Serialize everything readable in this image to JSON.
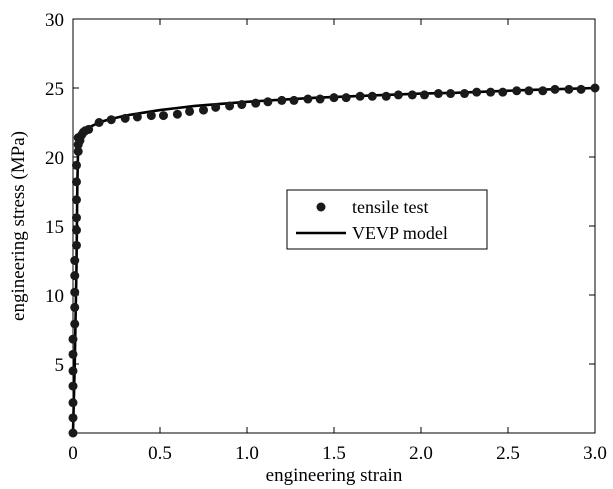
{
  "chart_data": {
    "type": "scatter",
    "title": "",
    "xlabel": "engineering strain",
    "ylabel": "engineering stress (MPa)",
    "xlim": [
      0,
      3.0
    ],
    "ylim": [
      0,
      30
    ],
    "xticks": [
      0,
      0.5,
      1.0,
      1.5,
      2.0,
      2.5,
      3.0
    ],
    "xtick_labels": [
      "0",
      "0.5",
      "1.0",
      "1.5",
      "2.0",
      "2.5",
      "3.0"
    ],
    "yticks": [
      5,
      10,
      15,
      20,
      25,
      30
    ],
    "ytick_labels": [
      "5",
      "10",
      "15",
      "20",
      "25",
      "30"
    ],
    "grid": false,
    "legend": {
      "placement": "center-right",
      "entries": [
        "tensile test",
        "VEVP model"
      ]
    },
    "series": [
      {
        "name": "tensile test",
        "kind": "markers",
        "color": "#1a1a1a",
        "x": [
          0.0,
          0.0,
          0.0,
          0.0,
          0.0,
          0.0,
          0.0,
          0.01,
          0.01,
          0.01,
          0.01,
          0.01,
          0.02,
          0.02,
          0.02,
          0.02,
          0.02,
          0.02,
          0.03,
          0.03,
          0.03,
          0.04,
          0.05,
          0.06,
          0.07,
          0.09,
          0.15,
          0.22,
          0.3,
          0.37,
          0.45,
          0.52,
          0.6,
          0.67,
          0.75,
          0.82,
          0.9,
          0.97,
          1.05,
          1.12,
          1.2,
          1.27,
          1.35,
          1.42,
          1.5,
          1.57,
          1.65,
          1.72,
          1.8,
          1.87,
          1.95,
          2.02,
          2.1,
          2.17,
          2.25,
          2.32,
          2.4,
          2.47,
          2.55,
          2.62,
          2.7,
          2.77,
          2.85,
          2.92,
          3.0
        ],
        "y": [
          0.0,
          1.1,
          2.2,
          3.4,
          4.5,
          5.7,
          6.8,
          7.9,
          9.1,
          10.2,
          11.4,
          12.5,
          13.6,
          14.7,
          15.6,
          16.9,
          18.2,
          19.4,
          20.4,
          20.9,
          21.4,
          21.2,
          21.6,
          21.8,
          21.9,
          22.0,
          22.5,
          22.7,
          22.8,
          22.9,
          23.0,
          23.0,
          23.1,
          23.3,
          23.4,
          23.6,
          23.7,
          23.8,
          23.9,
          24.0,
          24.1,
          24.1,
          24.2,
          24.2,
          24.3,
          24.3,
          24.4,
          24.4,
          24.4,
          24.5,
          24.5,
          24.5,
          24.6,
          24.6,
          24.6,
          24.7,
          24.7,
          24.7,
          24.8,
          24.8,
          24.8,
          24.9,
          24.9,
          24.9,
          25.0
        ]
      },
      {
        "name": "VEVP model",
        "kind": "line",
        "color": "#000000",
        "x": [
          0.0,
          0.01,
          0.02,
          0.025,
          0.03,
          0.04,
          0.06,
          0.1,
          0.15,
          0.2,
          0.3,
          0.4,
          0.5,
          0.6,
          0.7,
          0.8,
          0.9,
          1.0,
          1.2,
          1.4,
          1.6,
          1.8,
          2.0,
          2.2,
          2.4,
          2.6,
          2.8,
          3.0
        ],
        "y": [
          0.0,
          5.0,
          12.0,
          18.0,
          21.0,
          21.8,
          22.0,
          22.2,
          22.5,
          22.7,
          23.0,
          23.2,
          23.4,
          23.55,
          23.7,
          23.8,
          23.9,
          24.0,
          24.15,
          24.3,
          24.4,
          24.5,
          24.6,
          24.65,
          24.75,
          24.85,
          24.92,
          25.0
        ]
      }
    ]
  }
}
